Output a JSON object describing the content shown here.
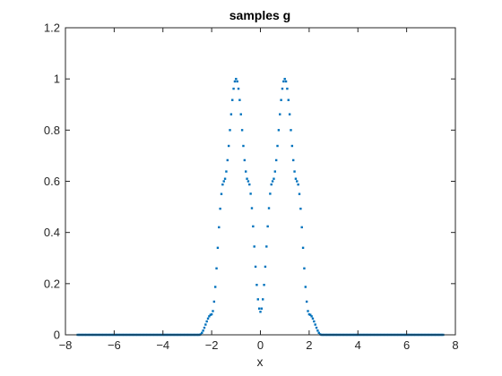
{
  "chart_data": {
    "type": "scatter",
    "title": "samples g",
    "xlabel": "x",
    "ylabel": "",
    "xlim": [
      -8,
      8
    ],
    "ylim": [
      0,
      1.2
    ],
    "xticks": [
      -8,
      -6,
      -4,
      -2,
      0,
      2,
      4,
      6,
      8
    ],
    "xtick_labels": [
      "−8",
      "−6",
      "−4",
      "−2",
      "0",
      "2",
      "4",
      "6",
      "8"
    ],
    "yticks": [
      0,
      0.2,
      0.4,
      0.6,
      0.8,
      1,
      1.2
    ],
    "ytick_labels": [
      "0",
      "0.2",
      "0.4",
      "0.6",
      "0.8",
      "1",
      "1.2"
    ],
    "grid": false,
    "marker_color": "#0072BD",
    "series": [
      {
        "x_range": [
          -7.5,
          7.5
        ],
        "sample_step": 0.05,
        "y_description_points": [
          {
            "x": -2.5,
            "y": 0.0
          },
          {
            "x": -2.0,
            "y": 0.08
          },
          {
            "x": -1.5,
            "y": 0.6
          },
          {
            "x": -1.0,
            "y": 1.0
          },
          {
            "x": -0.5,
            "y": 0.6
          },
          {
            "x": 0.0,
            "y": 0.09
          },
          {
            "x": 0.5,
            "y": 0.6
          },
          {
            "x": 1.0,
            "y": 1.0
          },
          {
            "x": 1.5,
            "y": 0.6
          },
          {
            "x": 2.0,
            "y": 0.08
          },
          {
            "x": 2.5,
            "y": 0.0
          }
        ]
      }
    ]
  }
}
